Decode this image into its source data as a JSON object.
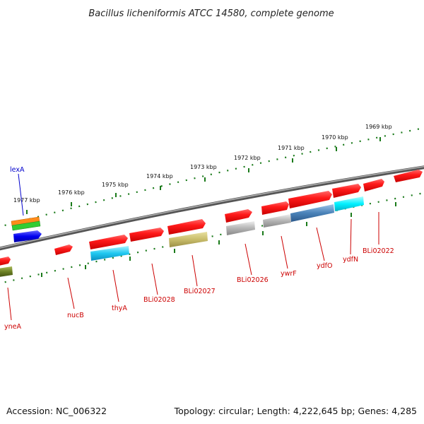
{
  "title": "Bacillus licheniformis ATCC 14580, complete genome",
  "footer": {
    "accession": "Accession: NC_006322",
    "summary": "Topology: circular; Length: 4,222,645 bp; Genes: 4,285"
  },
  "scale_labels": [
    "1977 kbp",
    "1976 kbp",
    "1975 kbp",
    "1974 kbp",
    "1973 kbp",
    "1972 kbp",
    "1971 kbp",
    "1970 kbp",
    "1969 kbp"
  ],
  "genes": [
    {
      "name": "lexA",
      "strand": "top",
      "color": "#0000ff"
    },
    {
      "name": "BLi02022",
      "strand": "top",
      "color": "#ff0000"
    },
    {
      "name": "ydfN",
      "strand": "bottom",
      "color": "#ff0000"
    },
    {
      "name": "ydfO",
      "strand": "bottom",
      "color": "#ff0000"
    },
    {
      "name": "ywrF",
      "strand": "top",
      "color": "#ff0000"
    },
    {
      "name": "BLi02026",
      "strand": "bottom",
      "color": "#ff0000"
    },
    {
      "name": "BLi02027",
      "strand": "bottom",
      "color": "#ff0000"
    },
    {
      "name": "BLi02028",
      "strand": "bottom",
      "color": "#ff0000"
    },
    {
      "name": "thyA",
      "strand": "bottom",
      "color": "#ff0000"
    },
    {
      "name": "nucB",
      "strand": "bottom",
      "color": "#ff0000"
    },
    {
      "name": "yneA",
      "strand": "bottom",
      "color": "#ff0000"
    }
  ],
  "colors": {
    "backbone": "#808080",
    "scale": "#1a7a1a",
    "gene_forward": "#ff0000",
    "label_blue": "#0000cc",
    "label_red": "#cc0000"
  }
}
